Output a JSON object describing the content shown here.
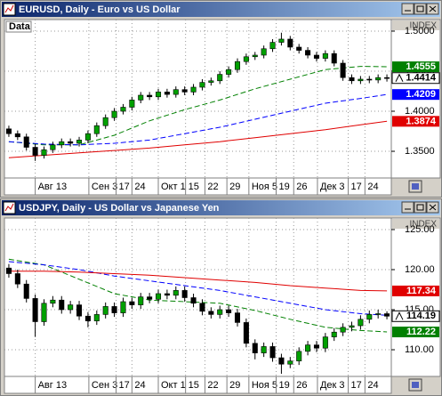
{
  "chart_data": [
    {
      "type": "candlestick",
      "title": "EURUSD, Daily - Euro vs US Dollar",
      "label": "Data",
      "axis_label": "INDEX",
      "up_color": "#00a000",
      "down_color": "#000000",
      "grid": true,
      "xlim": [
        -0.5,
        43.5
      ],
      "xticks": [
        {
          "value": 3,
          "label": "Авг 13"
        },
        {
          "value": 9.1,
          "label": "Сен 3"
        },
        {
          "value": 12.2,
          "label": "17"
        },
        {
          "value": 14,
          "label": "24"
        },
        {
          "value": 17,
          "label": "Окт 1"
        },
        {
          "value": 20.1,
          "label": "15"
        },
        {
          "value": 22.3,
          "label": "22"
        },
        {
          "value": 24.8,
          "label": "29"
        },
        {
          "value": 27.3,
          "label": "Ноя 5"
        },
        {
          "value": 30.4,
          "label": "19"
        },
        {
          "value": 32.4,
          "label": "26"
        },
        {
          "value": 35.1,
          "label": "Дек 3"
        },
        {
          "value": 38.6,
          "label": "17"
        },
        {
          "value": 40.5,
          "label": "24"
        }
      ],
      "ylim": [
        1.3167,
        1.5144
      ],
      "yticks": [
        {
          "value": 1.5,
          "label": "1.5000"
        },
        {
          "value": 1.45,
          "label": "1.4500"
        },
        {
          "value": 1.4,
          "label": "1.4000"
        },
        {
          "value": 1.35,
          "label": "1.3500"
        }
      ],
      "open": [
        1.378,
        1.372,
        1.368,
        1.355,
        1.345,
        1.352,
        1.358,
        1.362,
        1.36,
        1.364,
        1.372,
        1.382,
        1.392,
        1.4,
        1.405,
        1.414,
        1.42,
        1.418,
        1.424,
        1.421,
        1.427,
        1.424,
        1.43,
        1.436,
        1.438,
        1.446,
        1.452,
        1.462,
        1.468,
        1.47,
        1.478,
        1.486,
        1.49,
        1.48,
        1.476,
        1.47,
        1.466,
        1.472,
        1.46,
        1.442,
        1.438,
        1.44,
        1.439,
        1.442
      ],
      "high": [
        1.382,
        1.376,
        1.372,
        1.359,
        1.356,
        1.362,
        1.366,
        1.366,
        1.368,
        1.376,
        1.386,
        1.396,
        1.404,
        1.409,
        1.418,
        1.424,
        1.424,
        1.428,
        1.428,
        1.431,
        1.431,
        1.434,
        1.44,
        1.442,
        1.45,
        1.456,
        1.466,
        1.472,
        1.474,
        1.482,
        1.49,
        1.498,
        1.494,
        1.484,
        1.48,
        1.474,
        1.476,
        1.476,
        1.464,
        1.446,
        1.444,
        1.444,
        1.446,
        1.446
      ],
      "low": [
        1.368,
        1.364,
        1.351,
        1.338,
        1.341,
        1.348,
        1.354,
        1.356,
        1.356,
        1.36,
        1.368,
        1.378,
        1.388,
        1.396,
        1.401,
        1.41,
        1.414,
        1.414,
        1.417,
        1.417,
        1.42,
        1.42,
        1.426,
        1.432,
        1.434,
        1.442,
        1.448,
        1.458,
        1.464,
        1.466,
        1.474,
        1.482,
        1.476,
        1.472,
        1.466,
        1.462,
        1.462,
        1.456,
        1.438,
        1.434,
        1.434,
        1.435,
        1.435,
        1.437
      ],
      "close": [
        1.372,
        1.368,
        1.355,
        1.345,
        1.352,
        1.358,
        1.362,
        1.36,
        1.364,
        1.372,
        1.382,
        1.392,
        1.4,
        1.405,
        1.414,
        1.42,
        1.418,
        1.424,
        1.421,
        1.427,
        1.424,
        1.43,
        1.436,
        1.438,
        1.446,
        1.452,
        1.462,
        1.468,
        1.47,
        1.478,
        1.486,
        1.49,
        1.48,
        1.476,
        1.47,
        1.466,
        1.472,
        1.46,
        1.442,
        1.438,
        1.44,
        1.439,
        1.442,
        1.4414
      ],
      "series": [
        {
          "color": "#008000",
          "dash": true,
          "show_last": true,
          "x": [
            0,
            4,
            8,
            12,
            16,
            20,
            24,
            28,
            32,
            36,
            40,
            43
          ],
          "values": [
            1.362,
            1.358,
            1.358,
            1.37,
            1.388,
            1.402,
            1.414,
            1.428,
            1.44,
            1.452,
            1.456,
            1.4555
          ]
        },
        {
          "color": "#0000ff",
          "dash": true,
          "show_last": true,
          "x": [
            0,
            4,
            8,
            12,
            16,
            20,
            24,
            28,
            32,
            36,
            40,
            43
          ],
          "values": [
            1.362,
            1.359,
            1.358,
            1.36,
            1.364,
            1.372,
            1.38,
            1.39,
            1.4,
            1.41,
            1.416,
            1.4209
          ]
        },
        {
          "color": "#e00000",
          "dash": false,
          "show_last": true,
          "x": [
            0,
            4,
            8,
            12,
            16,
            20,
            24,
            28,
            32,
            36,
            40,
            43
          ],
          "values": [
            1.342,
            1.345,
            1.348,
            1.351,
            1.354,
            1.358,
            1.362,
            1.367,
            1.372,
            1.377,
            1.383,
            1.3874
          ]
        }
      ]
    },
    {
      "type": "candlestick",
      "title": "USDJPY, Daily - US Dollar vs Japanese Yen",
      "axis_label": "INDEX",
      "up_color": "#00a000",
      "down_color": "#000000",
      "grid": true,
      "xlim": [
        -0.5,
        43.5
      ],
      "xticks": [
        {
          "value": 3,
          "label": "Авг 13"
        },
        {
          "value": 9.1,
          "label": "Сен 3"
        },
        {
          "value": 12.2,
          "label": "17"
        },
        {
          "value": 14,
          "label": "24"
        },
        {
          "value": 17,
          "label": "Окт 1"
        },
        {
          "value": 20.1,
          "label": "15"
        },
        {
          "value": 22.3,
          "label": "22"
        },
        {
          "value": 24.8,
          "label": "29"
        },
        {
          "value": 27.3,
          "label": "Ноя 5"
        },
        {
          "value": 30.4,
          "label": "19"
        },
        {
          "value": 32.4,
          "label": "26"
        },
        {
          "value": 35.1,
          "label": "Дек 3"
        },
        {
          "value": 38.6,
          "label": "17"
        },
        {
          "value": 40.5,
          "label": "24"
        }
      ],
      "ylim": [
        106.67,
        126.44
      ],
      "yticks": [
        {
          "value": 125,
          "label": "125.00"
        },
        {
          "value": 120,
          "label": "120.00"
        },
        {
          "value": 115,
          "label": "115.00"
        },
        {
          "value": 110,
          "label": "110.00"
        }
      ],
      "open": [
        120.2,
        119.5,
        118.2,
        116.4,
        113.5,
        115.8,
        116.2,
        115.0,
        115.6,
        114.2,
        113.6,
        114.4,
        115.4,
        114.6,
        116.0,
        115.6,
        116.6,
        116.3,
        117.0,
        116.8,
        117.4,
        116.5,
        115.8,
        114.8,
        114.4,
        115.0,
        114.6,
        113.4,
        110.8,
        109.6,
        110.4,
        109.0,
        108.2,
        108.6,
        109.8,
        110.6,
        110.2,
        111.6,
        112.2,
        112.8,
        113.0,
        113.8,
        114.4,
        114.5
      ],
      "high": [
        120.7,
        120.0,
        118.7,
        116.9,
        116.3,
        116.7,
        116.7,
        116.1,
        116.1,
        114.7,
        114.9,
        115.9,
        115.9,
        116.5,
        116.5,
        117.1,
        117.1,
        117.5,
        117.5,
        117.9,
        117.9,
        117.0,
        116.3,
        115.3,
        115.5,
        115.5,
        115.1,
        113.9,
        111.3,
        110.9,
        110.9,
        109.5,
        109.1,
        110.3,
        111.1,
        111.1,
        112.1,
        112.7,
        113.3,
        113.5,
        114.3,
        114.9,
        115.0,
        114.8
      ],
      "low": [
        119.0,
        117.7,
        115.9,
        111.6,
        113.0,
        115.3,
        114.5,
        114.5,
        113.7,
        112.8,
        113.1,
        113.9,
        114.1,
        114.1,
        115.1,
        115.1,
        115.8,
        115.8,
        116.3,
        116.3,
        116.0,
        115.3,
        114.3,
        113.9,
        113.9,
        114.1,
        112.9,
        110.3,
        108.8,
        109.1,
        108.5,
        107.0,
        107.7,
        108.1,
        109.3,
        109.7,
        109.7,
        111.1,
        111.7,
        112.3,
        112.5,
        113.3,
        113.9,
        113.8
      ],
      "close": [
        119.5,
        118.2,
        116.4,
        113.5,
        115.8,
        116.2,
        115.0,
        115.6,
        114.2,
        113.6,
        114.4,
        115.4,
        114.6,
        116.0,
        115.6,
        116.6,
        116.3,
        117.0,
        116.8,
        117.4,
        116.5,
        115.8,
        114.8,
        114.4,
        115.0,
        114.6,
        113.4,
        110.8,
        109.6,
        110.4,
        109.0,
        108.2,
        108.6,
        109.8,
        110.6,
        110.2,
        111.6,
        112.2,
        112.8,
        113.0,
        113.8,
        114.4,
        114.5,
        114.19
      ],
      "series": [
        {
          "color": "#008000",
          "dash": true,
          "show_last": true,
          "x": [
            0,
            4,
            8,
            12,
            16,
            20,
            24,
            28,
            32,
            36,
            40,
            43
          ],
          "values": [
            121.3,
            120.6,
            118.8,
            117.0,
            116.2,
            116.0,
            115.8,
            114.9,
            113.8,
            112.8,
            112.4,
            112.22
          ]
        },
        {
          "color": "#0000ff",
          "dash": true,
          "show_last": false,
          "x": [
            0,
            4,
            8,
            12,
            16,
            20,
            24,
            28,
            32,
            36,
            40,
            43
          ],
          "values": [
            121.0,
            120.6,
            120.0,
            119.2,
            118.6,
            118.0,
            117.4,
            116.6,
            115.8,
            115.0,
            114.5,
            114.3
          ]
        },
        {
          "color": "#e00000",
          "dash": false,
          "show_last": true,
          "x": [
            0,
            4,
            8,
            12,
            16,
            20,
            24,
            28,
            32,
            36,
            40,
            43
          ],
          "values": [
            119.8,
            119.8,
            119.7,
            119.5,
            119.3,
            119.0,
            118.7,
            118.4,
            118.0,
            117.7,
            117.4,
            117.34
          ]
        }
      ]
    }
  ]
}
